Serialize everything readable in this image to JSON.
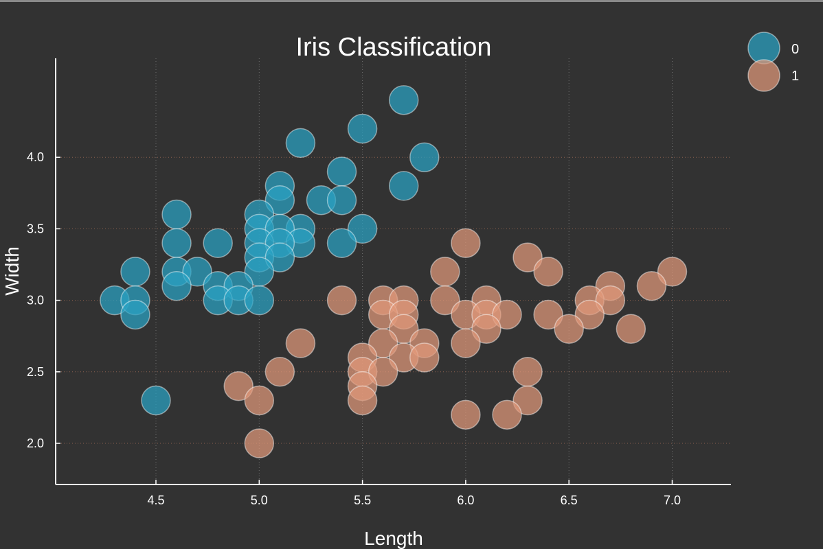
{
  "chart_data": {
    "type": "scatter",
    "title": "Iris Classification",
    "xlabel": "Length",
    "ylabel": "Width",
    "xlim": [
      4.0,
      7.3
    ],
    "ylim": [
      1.7,
      4.7
    ],
    "xticks": [
      "4.5",
      "5.0",
      "5.5",
      "6.0",
      "6.5",
      "7.0"
    ],
    "yticks": [
      "2.0",
      "2.5",
      "3.0",
      "3.5",
      "4.0"
    ],
    "grid": true,
    "legend": "top-right",
    "series": [
      {
        "name": "0",
        "color": "#2aa2c4",
        "points": [
          [
            5.7,
            4.4
          ],
          [
            5.5,
            4.2
          ],
          [
            5.2,
            4.1
          ],
          [
            5.8,
            4.0
          ],
          [
            5.4,
            3.9
          ],
          [
            5.7,
            3.8
          ],
          [
            5.1,
            3.8
          ],
          [
            5.3,
            3.7
          ],
          [
            5.4,
            3.7
          ],
          [
            5.1,
            3.7
          ],
          [
            4.6,
            3.6
          ],
          [
            5.0,
            3.6
          ],
          [
            5.5,
            3.5
          ],
          [
            5.2,
            3.5
          ],
          [
            5.0,
            3.5
          ],
          [
            5.1,
            3.5
          ],
          [
            4.6,
            3.4
          ],
          [
            4.8,
            3.4
          ],
          [
            5.0,
            3.4
          ],
          [
            5.2,
            3.4
          ],
          [
            5.4,
            3.4
          ],
          [
            5.1,
            3.4
          ],
          [
            5.0,
            3.3
          ],
          [
            5.1,
            3.3
          ],
          [
            4.4,
            3.2
          ],
          [
            4.6,
            3.2
          ],
          [
            4.7,
            3.2
          ],
          [
            5.0,
            3.2
          ],
          [
            4.6,
            3.1
          ],
          [
            4.8,
            3.1
          ],
          [
            4.9,
            3.1
          ],
          [
            4.3,
            3.0
          ],
          [
            4.4,
            3.0
          ],
          [
            4.8,
            3.0
          ],
          [
            4.9,
            3.0
          ],
          [
            5.0,
            3.0
          ],
          [
            4.4,
            2.9
          ],
          [
            4.5,
            2.3
          ]
        ]
      },
      {
        "name": "1",
        "color": "#e0997a",
        "points": [
          [
            6.0,
            3.4
          ],
          [
            6.3,
            3.3
          ],
          [
            5.9,
            3.2
          ],
          [
            6.4,
            3.2
          ],
          [
            7.0,
            3.2
          ],
          [
            6.7,
            3.1
          ],
          [
            6.9,
            3.1
          ],
          [
            5.4,
            3.0
          ],
          [
            5.6,
            3.0
          ],
          [
            5.7,
            3.0
          ],
          [
            5.9,
            3.0
          ],
          [
            6.1,
            3.0
          ],
          [
            6.6,
            3.0
          ],
          [
            6.7,
            3.0
          ],
          [
            5.6,
            2.9
          ],
          [
            5.7,
            2.9
          ],
          [
            6.0,
            2.9
          ],
          [
            6.1,
            2.9
          ],
          [
            6.2,
            2.9
          ],
          [
            6.4,
            2.9
          ],
          [
            6.6,
            2.9
          ],
          [
            5.7,
            2.8
          ],
          [
            6.1,
            2.8
          ],
          [
            6.5,
            2.8
          ],
          [
            6.8,
            2.8
          ],
          [
            5.2,
            2.7
          ],
          [
            5.6,
            2.7
          ],
          [
            5.8,
            2.7
          ],
          [
            6.0,
            2.7
          ],
          [
            5.5,
            2.6
          ],
          [
            5.7,
            2.6
          ],
          [
            5.8,
            2.6
          ],
          [
            5.1,
            2.5
          ],
          [
            5.5,
            2.5
          ],
          [
            5.6,
            2.5
          ],
          [
            6.3,
            2.5
          ],
          [
            4.9,
            2.4
          ],
          [
            5.5,
            2.4
          ],
          [
            5.0,
            2.3
          ],
          [
            5.5,
            2.3
          ],
          [
            6.3,
            2.3
          ],
          [
            6.0,
            2.2
          ],
          [
            6.2,
            2.2
          ],
          [
            5.0,
            2.0
          ]
        ]
      }
    ]
  }
}
